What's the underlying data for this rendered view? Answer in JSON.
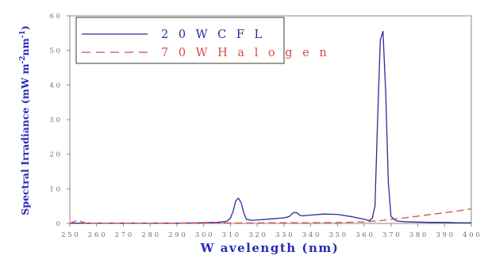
{
  "chart_data": {
    "type": "line",
    "xlabel": "W avelength (nm)",
    "ylabel": "Spectral Irradiance (mW m-2nm-1)",
    "ylabel_parts": {
      "main": "Spectral Irradiance (mW m",
      "sup1": "-2",
      "mid": "nm",
      "sup2": "-1",
      "end": ")"
    },
    "xlim": [
      250,
      400
    ],
    "ylim": [
      0,
      60
    ],
    "x_ticks": [
      "2 5 0",
      "2 6 0",
      "2 7 0",
      "2 8 0",
      "2 9 0",
      "3 0 0",
      "3 1 0",
      "3 2 0",
      "3 3 0",
      "3 4 0",
      "3 5 0",
      "3 6 0",
      "3 7 0",
      "3 8 0",
      "3 9 0",
      "4 0 0"
    ],
    "y_ticks": [
      "0",
      "1 0",
      "2 0",
      "3 0",
      "4 0",
      "5 0",
      "6 0"
    ],
    "grid": false,
    "legend_position": "top-left",
    "series": [
      {
        "name": "2 0 W   C F L",
        "color": "#2b2b9a",
        "style": "solid",
        "x": [
          250,
          260,
          270,
          280,
          290,
          300,
          305,
          308,
          309,
          310,
          311,
          312,
          313,
          314,
          315,
          316,
          318,
          320,
          325,
          330,
          332,
          333,
          334,
          335,
          336,
          337,
          340,
          345,
          350,
          355,
          360,
          362,
          363,
          364,
          365,
          366,
          367,
          368,
          369,
          370,
          372,
          375,
          380,
          385,
          390,
          395,
          400
        ],
        "y": [
          0.1,
          0.1,
          0.1,
          0.1,
          0.1,
          0.2,
          0.3,
          0.5,
          0.8,
          1.5,
          3.5,
          6.5,
          7.3,
          6.0,
          3.0,
          1.2,
          0.9,
          1.0,
          1.3,
          1.6,
          2.0,
          2.8,
          3.2,
          3.0,
          2.3,
          2.2,
          2.4,
          2.7,
          2.6,
          2.0,
          1.2,
          0.8,
          1.5,
          5.0,
          30.0,
          53.0,
          55.5,
          38.0,
          12.0,
          2.0,
          0.7,
          0.5,
          0.4,
          0.3,
          0.3,
          0.2,
          0.2
        ]
      },
      {
        "name": "7 0 W   H a l o g e n",
        "color": "#e04848",
        "style": "dashed",
        "x": [
          250,
          252,
          253,
          254,
          256,
          260,
          280,
          300,
          320,
          340,
          350,
          355,
          360,
          365,
          370,
          375,
          380,
          385,
          390,
          395,
          400
        ],
        "y": [
          0.1,
          0.6,
          1.0,
          0.6,
          0.1,
          0.1,
          0.1,
          0.1,
          0.15,
          0.2,
          0.25,
          0.35,
          0.45,
          0.7,
          1.2,
          1.6,
          2.1,
          2.6,
          3.1,
          3.6,
          4.2
        ]
      }
    ]
  }
}
